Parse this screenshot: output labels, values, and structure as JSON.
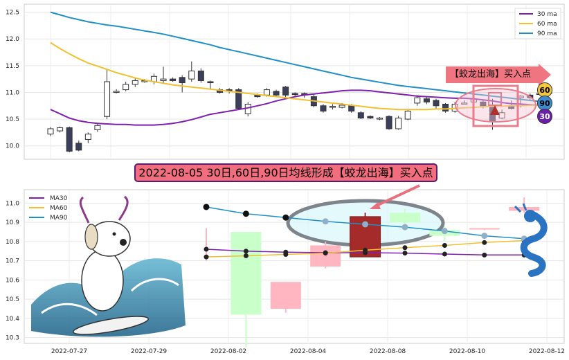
{
  "chart_data": [
    {
      "type": "candlestick",
      "panel": "top",
      "ylim": [
        9.75,
        12.65
      ],
      "yticks": [
        "10.0",
        "10.5",
        "11.0",
        "11.5",
        "12.0",
        "12.5"
      ],
      "grid": true,
      "legend_position": "top-right",
      "legend": [
        "30 ma",
        "60 ma",
        "90 ma"
      ],
      "series_colors": {
        "ma30": "#7e1fae",
        "ma60": "#f0c030",
        "ma90": "#1f8fc6"
      },
      "candles": [
        [
          10.22,
          10.32,
          10.18,
          10.35
        ],
        [
          10.28,
          10.34,
          10.25,
          10.36
        ],
        [
          10.34,
          9.9,
          9.88,
          10.36
        ],
        [
          10.05,
          9.92,
          9.9,
          10.1
        ],
        [
          10.12,
          10.22,
          10.05,
          10.25
        ],
        [
          10.3,
          10.38,
          10.26,
          10.42
        ],
        [
          10.55,
          11.2,
          10.5,
          11.42
        ],
        [
          11.0,
          11.02,
          10.98,
          11.06
        ],
        [
          11.05,
          11.15,
          11.02,
          11.2
        ],
        [
          11.15,
          11.22,
          11.1,
          11.28
        ],
        [
          11.2,
          11.22,
          11.18,
          11.25
        ],
        [
          11.2,
          11.3,
          11.15,
          11.35
        ],
        [
          11.22,
          11.25,
          11.18,
          11.48
        ],
        [
          11.25,
          11.22,
          11.2,
          11.28
        ],
        [
          11.28,
          11.18,
          11.0,
          11.32
        ],
        [
          11.25,
          11.4,
          11.2,
          11.58
        ],
        [
          11.4,
          11.22,
          11.18,
          11.45
        ],
        [
          11.2,
          11.18,
          11.05,
          11.22
        ],
        [
          11.05,
          11.0,
          10.98,
          11.08
        ],
        [
          11.05,
          11.02,
          10.98,
          11.08
        ],
        [
          11.05,
          10.7,
          10.68,
          11.08
        ],
        [
          10.6,
          10.78,
          10.55,
          10.82
        ],
        [
          10.95,
          10.92,
          10.9,
          10.98
        ],
        [
          10.95,
          11.05,
          10.92,
          11.08
        ],
        [
          11.02,
          10.95,
          10.92,
          11.05
        ],
        [
          11.1,
          10.95,
          10.9,
          11.12
        ],
        [
          10.98,
          10.96,
          10.92,
          11.0
        ],
        [
          10.98,
          10.95,
          10.9,
          11.0
        ],
        [
          10.92,
          10.75,
          10.72,
          10.96
        ],
        [
          10.75,
          10.65,
          10.62,
          10.78
        ],
        [
          10.72,
          10.74,
          10.68,
          10.78
        ],
        [
          10.72,
          10.76,
          10.7,
          10.8
        ],
        [
          10.75,
          10.65,
          10.62,
          10.78
        ],
        [
          10.62,
          10.52,
          10.5,
          10.65
        ],
        [
          10.55,
          10.52,
          10.5,
          10.57
        ],
        [
          10.5,
          10.52,
          10.48,
          10.54
        ],
        [
          10.55,
          10.32,
          10.3,
          10.57
        ],
        [
          10.32,
          10.52,
          10.3,
          10.56
        ],
        [
          10.5,
          10.65,
          10.48,
          10.68
        ],
        [
          10.8,
          10.9,
          10.75,
          10.95
        ],
        [
          10.88,
          10.82,
          10.78,
          10.92
        ],
        [
          10.85,
          10.75,
          10.7,
          10.88
        ],
        [
          10.78,
          10.65,
          10.62,
          10.8
        ],
        [
          10.65,
          10.78,
          10.62,
          10.82
        ],
        [
          10.8,
          10.8,
          10.78,
          10.85
        ],
        [
          10.82,
          10.88,
          10.8,
          10.9
        ],
        [
          10.82,
          10.75,
          10.7,
          10.85
        ],
        [
          10.75,
          10.45,
          10.3,
          10.88
        ],
        [
          10.52,
          10.62,
          10.5,
          10.68
        ],
        [
          10.75,
          10.7,
          10.68,
          10.85
        ],
        [
          10.9,
          10.93,
          10.72,
          10.95
        ],
        [
          10.95,
          10.9,
          10.85,
          10.98
        ],
        [
          10.98,
          10.98,
          10.95,
          11.02
        ],
        [
          10.98,
          11.0,
          10.95,
          11.05
        ]
      ],
      "ma30": [
        10.68,
        10.6,
        10.52,
        10.47,
        10.44,
        10.42,
        10.41,
        10.4,
        10.4,
        10.39,
        10.39,
        10.39,
        10.4,
        10.42,
        10.45,
        10.49,
        10.54,
        10.59,
        10.62,
        10.65,
        10.68,
        10.71,
        10.75,
        10.79,
        10.84,
        10.88,
        10.92,
        10.95,
        10.97,
        10.99,
        11.01,
        11.03,
        11.04,
        11.04,
        11.03,
        11.01,
        10.99,
        10.97,
        10.95,
        10.93,
        10.92,
        10.91,
        10.9,
        10.89,
        10.89,
        10.88,
        10.86,
        10.84,
        10.81,
        10.79,
        10.78,
        10.77,
        10.76,
        10.76
      ],
      "ma60": [
        11.93,
        11.82,
        11.72,
        11.63,
        11.55,
        11.49,
        11.43,
        11.37,
        11.32,
        11.27,
        11.23,
        11.2,
        11.17,
        11.14,
        11.12,
        11.1,
        11.08,
        11.06,
        11.04,
        11.02,
        11.0,
        10.98,
        10.96,
        10.94,
        10.92,
        10.9,
        10.88,
        10.86,
        10.84,
        10.82,
        10.8,
        10.78,
        10.76,
        10.74,
        10.72,
        10.7,
        10.69,
        10.68,
        10.68,
        10.68,
        10.68,
        10.69,
        10.69,
        10.7,
        10.71,
        10.72,
        10.73,
        10.74,
        10.74,
        10.75,
        10.75,
        10.76,
        10.76,
        10.76
      ],
      "ma90": [
        12.5,
        12.45,
        12.4,
        12.36,
        12.32,
        12.29,
        12.26,
        12.24,
        12.21,
        12.18,
        12.15,
        12.12,
        12.09,
        12.05,
        12.01,
        11.97,
        11.93,
        11.89,
        11.84,
        11.8,
        11.76,
        11.72,
        11.68,
        11.64,
        11.6,
        11.56,
        11.52,
        11.48,
        11.44,
        11.4,
        11.36,
        11.32,
        11.28,
        11.25,
        11.22,
        11.19,
        11.16,
        11.13,
        11.11,
        11.09,
        11.07,
        11.05,
        11.03,
        11.01,
        10.99,
        10.97,
        10.95,
        10.93,
        10.91,
        10.89,
        10.87,
        10.85,
        10.83,
        10.81
      ],
      "coin_labels": [
        "60",
        "90",
        "30"
      ]
    },
    {
      "type": "candlestick",
      "panel": "bottom",
      "ylim": [
        10.27,
        11.07
      ],
      "yticks": [
        "10.3",
        "10.4",
        "10.5",
        "10.6",
        "10.7",
        "10.8",
        "10.9",
        "11.0"
      ],
      "xtick_labels": [
        "2022-07-27",
        "2022-07-29",
        "2022-08-02",
        "2022-08-04",
        "2022-08-08",
        "2022-08-10",
        "2022-08-12"
      ],
      "grid": true,
      "legend_position": "top-left",
      "series": [
        {
          "name": "MA30",
          "color": "#7e1fae",
          "values": [
            10.76,
            10.75,
            10.745,
            10.742,
            10.742,
            10.74,
            10.735,
            10.73,
            10.73
          ]
        },
        {
          "name": "MA60",
          "color": "#f0c030",
          "values": [
            10.72,
            10.726,
            10.733,
            10.74,
            10.755,
            10.768,
            10.78,
            10.795,
            10.805
          ]
        },
        {
          "name": "MA90",
          "color": "#1f8fc6",
          "values": [
            10.98,
            10.945,
            10.925,
            10.905,
            10.89,
            10.875,
            10.855,
            10.83,
            10.815
          ]
        }
      ],
      "candles": [
        {
          "open": 10.73,
          "close": 10.73,
          "low": 10.7,
          "high": 10.87
        },
        {
          "open": 10.42,
          "close": 10.85,
          "low": 10.25,
          "high": 10.85
        },
        {
          "open": 10.59,
          "close": 10.45,
          "low": 10.43,
          "high": 10.59
        },
        {
          "open": 10.67,
          "close": 10.78,
          "low": 10.66,
          "high": 10.8
        },
        {
          "open": 10.72,
          "close": 10.93,
          "low": 10.72,
          "high": 10.95
        },
        {
          "open": 10.9,
          "close": 10.95,
          "low": 10.88,
          "high": 10.97
        },
        {
          "open": 10.83,
          "close": 10.86,
          "low": 10.8,
          "high": 10.88
        },
        {
          "open": 10.87,
          "close": 10.87,
          "low": 10.86,
          "high": 10.87
        },
        {
          "open": 10.96,
          "close": 10.98,
          "low": 10.95,
          "high": 11.03
        }
      ]
    }
  ],
  "annotation": {
    "banner": "2022-08-05 30日,60日,90日均线形成【蛟龙出海】买入点",
    "badge": "【蛟龙出海】买入点"
  }
}
